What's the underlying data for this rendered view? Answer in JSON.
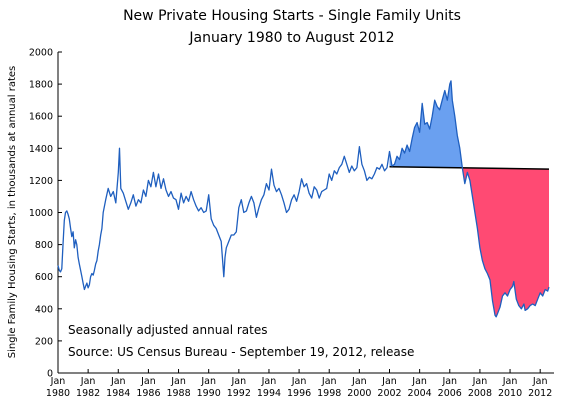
{
  "chart_data": {
    "type": "line",
    "title": "New Private Housing Starts - Single Family Units",
    "subtitle": "January 1980 to August 2012",
    "xlabel": "",
    "ylabel": "Single Family Housing Starts, in thousands at annual rates",
    "ylim": [
      0,
      2000
    ],
    "yticks": [
      "0",
      "200",
      "400",
      "600",
      "800",
      "1000",
      "1200",
      "1400",
      "1600",
      "1800",
      "2000"
    ],
    "xlim": [
      "1980-01",
      "2012-12"
    ],
    "xticks": [
      {
        "month": "Jan",
        "year": "1980"
      },
      {
        "month": "Jan",
        "year": "1982"
      },
      {
        "month": "Jan",
        "year": "1984"
      },
      {
        "month": "Jan",
        "year": "1986"
      },
      {
        "month": "Jan",
        "year": "1988"
      },
      {
        "month": "Jan",
        "year": "1990"
      },
      {
        "month": "Jan",
        "year": "1992"
      },
      {
        "month": "Jan",
        "year": "1994"
      },
      {
        "month": "Jan",
        "year": "1996"
      },
      {
        "month": "Jan",
        "year": "1998"
      },
      {
        "month": "Jan",
        "year": "2000"
      },
      {
        "month": "Jan",
        "year": "2002"
      },
      {
        "month": "Jan",
        "year": "2004"
      },
      {
        "month": "Jan",
        "year": "2006"
      },
      {
        "month": "Jan",
        "year": "2008"
      },
      {
        "month": "Jan",
        "year": "2010"
      },
      {
        "month": "Jan",
        "year": "2012"
      }
    ],
    "grid": false,
    "legend": "none",
    "annotations": [
      "Seasonally adjusted annual rates",
      "Source:  US Census Bureau - September 19, 2012, release"
    ],
    "baseline": {
      "from": "2002-01",
      "to": "2012-08",
      "y_start": 1285,
      "y_end": 1270
    },
    "colors": {
      "line": "#1f5fbf",
      "above_fill": "#6aa0f0",
      "below_fill": "#ff4a73",
      "baseline": "#000000"
    },
    "series": [
      {
        "name": "",
        "points": [
          [
            "1980-01",
            670
          ],
          [
            "1980-02",
            640
          ],
          [
            "1980-03",
            630
          ],
          [
            "1980-04",
            650
          ],
          [
            "1980-05",
            800
          ],
          [
            "1980-06",
            950
          ],
          [
            "1980-07",
            1000
          ],
          [
            "1980-08",
            1010
          ],
          [
            "1980-09",
            990
          ],
          [
            "1980-10",
            960
          ],
          [
            "1980-11",
            900
          ],
          [
            "1980-12",
            850
          ],
          [
            "1981-01",
            880
          ],
          [
            "1981-02",
            780
          ],
          [
            "1981-03",
            830
          ],
          [
            "1981-04",
            800
          ],
          [
            "1981-05",
            720
          ],
          [
            "1981-06",
            680
          ],
          [
            "1981-07",
            640
          ],
          [
            "1981-08",
            600
          ],
          [
            "1981-09",
            560
          ],
          [
            "1981-10",
            520
          ],
          [
            "1981-11",
            540
          ],
          [
            "1981-12",
            560
          ],
          [
            "1982-01",
            530
          ],
          [
            "1982-02",
            550
          ],
          [
            "1982-03",
            600
          ],
          [
            "1982-04",
            620
          ],
          [
            "1982-05",
            610
          ],
          [
            "1982-06",
            640
          ],
          [
            "1982-07",
            680
          ],
          [
            "1982-08",
            700
          ],
          [
            "1982-09",
            760
          ],
          [
            "1982-10",
            800
          ],
          [
            "1982-11",
            860
          ],
          [
            "1982-12",
            900
          ],
          [
            "1983-01",
            1000
          ],
          [
            "1983-03",
            1080
          ],
          [
            "1983-05",
            1150
          ],
          [
            "1983-07",
            1100
          ],
          [
            "1983-09",
            1130
          ],
          [
            "1983-11",
            1060
          ],
          [
            "1984-01",
            1250
          ],
          [
            "1984-02",
            1400
          ],
          [
            "1984-03",
            1150
          ],
          [
            "1984-05",
            1120
          ],
          [
            "1984-07",
            1070
          ],
          [
            "1984-09",
            1020
          ],
          [
            "1984-11",
            1060
          ],
          [
            "1985-01",
            1110
          ],
          [
            "1985-03",
            1040
          ],
          [
            "1985-05",
            1080
          ],
          [
            "1985-07",
            1060
          ],
          [
            "1985-09",
            1140
          ],
          [
            "1985-11",
            1100
          ],
          [
            "1986-01",
            1200
          ],
          [
            "1986-03",
            1160
          ],
          [
            "1986-05",
            1250
          ],
          [
            "1986-07",
            1160
          ],
          [
            "1986-09",
            1240
          ],
          [
            "1986-11",
            1150
          ],
          [
            "1987-01",
            1210
          ],
          [
            "1987-03",
            1140
          ],
          [
            "1987-05",
            1100
          ],
          [
            "1987-07",
            1130
          ],
          [
            "1987-09",
            1090
          ],
          [
            "1987-11",
            1080
          ],
          [
            "1988-01",
            1020
          ],
          [
            "1988-03",
            1120
          ],
          [
            "1988-05",
            1060
          ],
          [
            "1988-07",
            1100
          ],
          [
            "1988-09",
            1070
          ],
          [
            "1988-11",
            1130
          ],
          [
            "1989-01",
            1080
          ],
          [
            "1989-03",
            1040
          ],
          [
            "1989-05",
            1010
          ],
          [
            "1989-07",
            1030
          ],
          [
            "1989-09",
            1000
          ],
          [
            "1989-11",
            1010
          ],
          [
            "1990-01",
            1110
          ],
          [
            "1990-03",
            960
          ],
          [
            "1990-05",
            920
          ],
          [
            "1990-07",
            900
          ],
          [
            "1990-09",
            860
          ],
          [
            "1990-11",
            820
          ],
          [
            "1991-01",
            600
          ],
          [
            "1991-02",
            720
          ],
          [
            "1991-03",
            780
          ],
          [
            "1991-05",
            820
          ],
          [
            "1991-07",
            860
          ],
          [
            "1991-09",
            860
          ],
          [
            "1991-11",
            880
          ],
          [
            "1992-01",
            1030
          ],
          [
            "1992-03",
            1080
          ],
          [
            "1992-05",
            1000
          ],
          [
            "1992-07",
            1010
          ],
          [
            "1992-09",
            1060
          ],
          [
            "1992-11",
            1100
          ],
          [
            "1993-01",
            1060
          ],
          [
            "1993-03",
            970
          ],
          [
            "1993-05",
            1030
          ],
          [
            "1993-07",
            1080
          ],
          [
            "1993-09",
            1110
          ],
          [
            "1993-11",
            1180
          ],
          [
            "1994-01",
            1140
          ],
          [
            "1994-03",
            1270
          ],
          [
            "1994-05",
            1170
          ],
          [
            "1994-07",
            1130
          ],
          [
            "1994-09",
            1150
          ],
          [
            "1994-11",
            1110
          ],
          [
            "1995-01",
            1060
          ],
          [
            "1995-03",
            1000
          ],
          [
            "1995-05",
            1020
          ],
          [
            "1995-07",
            1080
          ],
          [
            "1995-09",
            1110
          ],
          [
            "1995-11",
            1070
          ],
          [
            "1996-01",
            1130
          ],
          [
            "1996-03",
            1210
          ],
          [
            "1996-05",
            1160
          ],
          [
            "1996-07",
            1180
          ],
          [
            "1996-09",
            1120
          ],
          [
            "1996-11",
            1090
          ],
          [
            "1997-01",
            1160
          ],
          [
            "1997-03",
            1140
          ],
          [
            "1997-05",
            1090
          ],
          [
            "1997-07",
            1130
          ],
          [
            "1997-09",
            1140
          ],
          [
            "1997-11",
            1150
          ],
          [
            "1998-01",
            1240
          ],
          [
            "1998-03",
            1200
          ],
          [
            "1998-05",
            1260
          ],
          [
            "1998-07",
            1240
          ],
          [
            "1998-09",
            1280
          ],
          [
            "1998-11",
            1300
          ],
          [
            "1999-01",
            1350
          ],
          [
            "1999-03",
            1300
          ],
          [
            "1999-05",
            1250
          ],
          [
            "1999-07",
            1290
          ],
          [
            "1999-09",
            1260
          ],
          [
            "1999-11",
            1280
          ],
          [
            "2000-01",
            1410
          ],
          [
            "2000-03",
            1300
          ],
          [
            "2000-05",
            1260
          ],
          [
            "2000-07",
            1200
          ],
          [
            "2000-09",
            1220
          ],
          [
            "2000-11",
            1210
          ],
          [
            "2001-01",
            1240
          ],
          [
            "2001-03",
            1280
          ],
          [
            "2001-05",
            1270
          ],
          [
            "2001-07",
            1300
          ],
          [
            "2001-09",
            1260
          ],
          [
            "2001-11",
            1280
          ],
          [
            "2002-01",
            1380
          ],
          [
            "2002-03",
            1290
          ],
          [
            "2002-05",
            1300
          ],
          [
            "2002-07",
            1350
          ],
          [
            "2002-09",
            1330
          ],
          [
            "2002-11",
            1400
          ],
          [
            "2003-01",
            1370
          ],
          [
            "2003-03",
            1420
          ],
          [
            "2003-05",
            1380
          ],
          [
            "2003-07",
            1460
          ],
          [
            "2003-09",
            1530
          ],
          [
            "2003-11",
            1560
          ],
          [
            "2004-01",
            1500
          ],
          [
            "2004-03",
            1680
          ],
          [
            "2004-05",
            1550
          ],
          [
            "2004-07",
            1560
          ],
          [
            "2004-09",
            1520
          ],
          [
            "2004-11",
            1600
          ],
          [
            "2005-01",
            1700
          ],
          [
            "2005-03",
            1660
          ],
          [
            "2005-05",
            1640
          ],
          [
            "2005-07",
            1700
          ],
          [
            "2005-09",
            1760
          ],
          [
            "2005-11",
            1700
          ],
          [
            "2006-01",
            1800
          ],
          [
            "2006-02",
            1820
          ],
          [
            "2006-03",
            1700
          ],
          [
            "2006-05",
            1600
          ],
          [
            "2006-07",
            1480
          ],
          [
            "2006-09",
            1400
          ],
          [
            "2006-11",
            1280
          ],
          [
            "2007-01",
            1180
          ],
          [
            "2007-03",
            1250
          ],
          [
            "2007-05",
            1200
          ],
          [
            "2007-07",
            1100
          ],
          [
            "2007-09",
            1000
          ],
          [
            "2007-11",
            900
          ],
          [
            "2008-01",
            780
          ],
          [
            "2008-03",
            700
          ],
          [
            "2008-05",
            650
          ],
          [
            "2008-07",
            620
          ],
          [
            "2008-09",
            580
          ],
          [
            "2008-11",
            450
          ],
          [
            "2009-01",
            360
          ],
          [
            "2009-02",
            350
          ],
          [
            "2009-03",
            370
          ],
          [
            "2009-05",
            410
          ],
          [
            "2009-07",
            480
          ],
          [
            "2009-09",
            500
          ],
          [
            "2009-11",
            480
          ],
          [
            "2010-01",
            520
          ],
          [
            "2010-03",
            540
          ],
          [
            "2010-04",
            570
          ],
          [
            "2010-06",
            460
          ],
          [
            "2010-08",
            420
          ],
          [
            "2010-10",
            400
          ],
          [
            "2010-12",
            430
          ],
          [
            "2011-01",
            390
          ],
          [
            "2011-03",
            400
          ],
          [
            "2011-05",
            420
          ],
          [
            "2011-07",
            430
          ],
          [
            "2011-09",
            420
          ],
          [
            "2011-11",
            460
          ],
          [
            "2012-01",
            500
          ],
          [
            "2012-03",
            480
          ],
          [
            "2012-05",
            520
          ],
          [
            "2012-07",
            510
          ],
          [
            "2012-08",
            535
          ]
        ]
      }
    ]
  }
}
